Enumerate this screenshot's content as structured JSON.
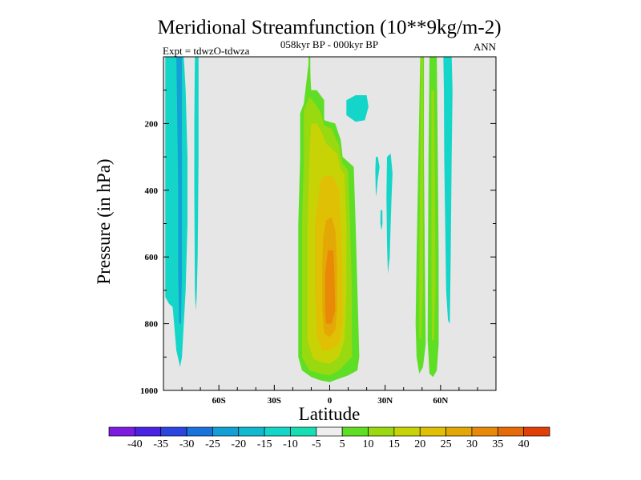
{
  "chart_data": {
    "type": "heatmap",
    "title": "Meridional Streamfunction (10**9kg/m-2)",
    "subtitle": "058kyr BP - 000kyr BP",
    "experiment_label": "Expt = tdwzO-tdwza",
    "season_label": "ANN",
    "xlabel": "Latitude",
    "ylabel": "Pressure (in hPa)",
    "x_range": [
      -90,
      90
    ],
    "y_range": [
      0,
      1000
    ],
    "y_inverted": true,
    "x_ticks": [
      {
        "value": -60,
        "label": "60S"
      },
      {
        "value": -30,
        "label": "30S"
      },
      {
        "value": 0,
        "label": "0"
      },
      {
        "value": 30,
        "label": "30N"
      },
      {
        "value": 60,
        "label": "60N"
      }
    ],
    "y_ticks": [
      {
        "value": 200,
        "label": "200"
      },
      {
        "value": 400,
        "label": "400"
      },
      {
        "value": 600,
        "label": "600"
      },
      {
        "value": 800,
        "label": "800"
      },
      {
        "value": 1000,
        "label": "1000"
      }
    ],
    "background_color": "#e6e6e6",
    "colorbar": {
      "levels": [
        -40,
        -35,
        -30,
        -25,
        -20,
        -15,
        -10,
        -5,
        5,
        10,
        15,
        20,
        25,
        30,
        35,
        40
      ],
      "colors": [
        "#7d1be0",
        "#4a22e4",
        "#2a45e0",
        "#1a72dc",
        "#13a0d6",
        "#0fbad0",
        "#14d6c8",
        "#18deb4",
        "#eeeeee",
        "#5fde26",
        "#98d90f",
        "#c8d306",
        "#e0c004",
        "#e4a806",
        "#e88a08",
        "#e66a08",
        "#e23e08"
      ]
    },
    "contour_regions": [
      {
        "name": "south-polar-band",
        "color": "#14d6c8",
        "points": [
          [
            -89,
            0
          ],
          [
            -79,
            0
          ],
          [
            -78,
            100
          ],
          [
            -77,
            300
          ],
          [
            -77,
            500
          ],
          [
            -78,
            700
          ],
          [
            -79,
            800
          ],
          [
            -80,
            900
          ],
          [
            -81,
            930
          ],
          [
            -83,
            880
          ],
          [
            -85,
            750
          ],
          [
            -87,
            740
          ],
          [
            -89,
            720
          ]
        ]
      },
      {
        "name": "south-polar-band-inner",
        "color": "#13a0d6",
        "points": [
          [
            -83,
            0
          ],
          [
            -80,
            0
          ],
          [
            -80,
            200
          ],
          [
            -80,
            400
          ],
          [
            -80,
            650
          ],
          [
            -80.5,
            800
          ],
          [
            -81.5,
            800
          ],
          [
            -82,
            650
          ],
          [
            -82,
            400
          ],
          [
            -82.5,
            200
          ]
        ]
      },
      {
        "name": "south-narrow-band",
        "color": "#14d6c8",
        "points": [
          [
            -73,
            0
          ],
          [
            -71,
            0
          ],
          [
            -71,
            300
          ],
          [
            -71.5,
            600
          ],
          [
            -72,
            720
          ],
          [
            -72.5,
            760
          ],
          [
            -73,
            700
          ],
          [
            -73.3,
            400
          ],
          [
            -73.3,
            200
          ]
        ]
      },
      {
        "name": "tropical-cell-5",
        "color": "#5fde26",
        "points": [
          [
            -11,
            0
          ],
          [
            -10,
            100
          ],
          [
            -7,
            100
          ],
          [
            -3,
            130
          ],
          [
            -3,
            190
          ],
          [
            3,
            200
          ],
          [
            6,
            250
          ],
          [
            7,
            300
          ],
          [
            13,
            330
          ],
          [
            14,
            500
          ],
          [
            15,
            700
          ],
          [
            16,
            900
          ],
          [
            15,
            940
          ],
          [
            10,
            955
          ],
          [
            5,
            965
          ],
          [
            0,
            975
          ],
          [
            -5,
            970
          ],
          [
            -10,
            960
          ],
          [
            -15,
            940
          ],
          [
            -17,
            900
          ],
          [
            -17,
            700
          ],
          [
            -17,
            500
          ],
          [
            -16,
            300
          ],
          [
            -16,
            170
          ],
          [
            -14,
            140
          ]
        ]
      },
      {
        "name": "tropical-cell-10",
        "color": "#98d90f",
        "points": [
          [
            -11,
            120
          ],
          [
            -8,
            140
          ],
          [
            -5,
            165
          ],
          [
            -3,
            205
          ],
          [
            1,
            215
          ],
          [
            5,
            265
          ],
          [
            7,
            320
          ],
          [
            10,
            340
          ],
          [
            11,
            500
          ],
          [
            12,
            700
          ],
          [
            12,
            900
          ],
          [
            5,
            940
          ],
          [
            0,
            955
          ],
          [
            -5,
            950
          ],
          [
            -11,
            940
          ],
          [
            -15,
            900
          ],
          [
            -15,
            700
          ],
          [
            -15,
            500
          ],
          [
            -14,
            300
          ],
          [
            -14,
            160
          ]
        ]
      },
      {
        "name": "tropical-cell-15",
        "color": "#c8d306",
        "points": [
          [
            -10,
            200
          ],
          [
            -7,
            200
          ],
          [
            -4,
            230
          ],
          [
            -2,
            260
          ],
          [
            4,
            290
          ],
          [
            6,
            340
          ],
          [
            8,
            350
          ],
          [
            9,
            500
          ],
          [
            9,
            700
          ],
          [
            8,
            850
          ],
          [
            5,
            900
          ],
          [
            0,
            920
          ],
          [
            -5,
            915
          ],
          [
            -9,
            905
          ],
          [
            -12,
            850
          ],
          [
            -12,
            700
          ],
          [
            -12,
            500
          ],
          [
            -11,
            300
          ]
        ]
      },
      {
        "name": "tropical-cell-20",
        "color": "#e0c004",
        "points": [
          [
            -5,
            370
          ],
          [
            -2,
            355
          ],
          [
            2,
            360
          ],
          [
            5,
            400
          ],
          [
            6,
            500
          ],
          [
            7,
            650
          ],
          [
            7,
            800
          ],
          [
            5,
            860
          ],
          [
            0,
            880
          ],
          [
            -4,
            880
          ],
          [
            -7,
            840
          ],
          [
            -8,
            700
          ],
          [
            -8,
            500
          ]
        ]
      },
      {
        "name": "tropical-cell-25",
        "color": "#e4a806",
        "points": [
          [
            -2,
            490
          ],
          [
            1,
            480
          ],
          [
            3,
            520
          ],
          [
            4,
            620
          ],
          [
            4,
            760
          ],
          [
            3,
            820
          ],
          [
            0,
            840
          ],
          [
            -3,
            830
          ],
          [
            -4,
            760
          ],
          [
            -4,
            620
          ],
          [
            -3.5,
            540
          ]
        ]
      },
      {
        "name": "tropical-cell-30",
        "color": "#e88a08",
        "points": [
          [
            -1,
            580
          ],
          [
            2,
            580
          ],
          [
            2.5,
            650
          ],
          [
            3,
            760
          ],
          [
            1,
            800
          ],
          [
            -2,
            800
          ],
          [
            -2.5,
            760
          ],
          [
            -2.5,
            650
          ]
        ]
      },
      {
        "name": "tropical-updraft-strand",
        "color": "#5fde26",
        "points": [
          [
            -11.5,
            0
          ],
          [
            -10.5,
            0
          ],
          [
            -10.5,
            100
          ],
          [
            -11.5,
            100
          ]
        ]
      },
      {
        "name": "nh-subtropic-blob-1",
        "color": "#14d6c8",
        "points": [
          [
            9,
            130
          ],
          [
            14,
            115
          ],
          [
            20,
            115
          ],
          [
            21,
            150
          ],
          [
            19,
            190
          ],
          [
            14,
            195
          ],
          [
            9,
            175
          ]
        ]
      },
      {
        "name": "nh-subtropic-blob-2",
        "color": "#14d6c8",
        "points": [
          [
            25,
            300
          ],
          [
            26,
            300
          ],
          [
            27,
            330
          ],
          [
            26,
            370
          ],
          [
            25.5,
            400
          ],
          [
            25,
            420
          ],
          [
            24.8,
            380
          ],
          [
            24.7,
            340
          ]
        ]
      },
      {
        "name": "nh-subtropic-blob-3",
        "color": "#14d6c8",
        "points": [
          [
            31,
            300
          ],
          [
            33,
            290
          ],
          [
            34,
            350
          ],
          [
            33.5,
            420
          ],
          [
            33,
            500
          ],
          [
            32.5,
            600
          ],
          [
            31.5,
            650
          ],
          [
            31,
            560
          ],
          [
            30.7,
            420
          ]
        ]
      },
      {
        "name": "nh-subtropic-blob-4",
        "color": "#14d6c8",
        "points": [
          [
            27.5,
            460
          ],
          [
            28.5,
            460
          ],
          [
            28.6,
            500
          ],
          [
            28,
            520
          ],
          [
            27.4,
            500
          ]
        ]
      },
      {
        "name": "nh-midlat-band-5",
        "color": "#5fde26",
        "points": [
          [
            49,
            0
          ],
          [
            51,
            0
          ],
          [
            51,
            300
          ],
          [
            51.5,
            600
          ],
          [
            52,
            860
          ],
          [
            50.5,
            930
          ],
          [
            48.5,
            950
          ],
          [
            47,
            900
          ],
          [
            46.5,
            800
          ],
          [
            47,
            600
          ],
          [
            48,
            300
          ]
        ]
      },
      {
        "name": "nh-midlat-band-10",
        "color": "#98d90f",
        "points": [
          [
            49.5,
            0
          ],
          [
            50.5,
            0
          ],
          [
            50.5,
            400
          ],
          [
            50.5,
            700
          ],
          [
            49.5,
            850
          ],
          [
            48.5,
            840
          ],
          [
            48.5,
            600
          ],
          [
            49,
            300
          ]
        ]
      },
      {
        "name": "nh-highlat-band-5",
        "color": "#5fde26",
        "points": [
          [
            54,
            0
          ],
          [
            58,
            0
          ],
          [
            58.5,
            300
          ],
          [
            59,
            600
          ],
          [
            59,
            860
          ],
          [
            58,
            940
          ],
          [
            56,
            960
          ],
          [
            54,
            950
          ],
          [
            53,
            850
          ],
          [
            53.2,
            600
          ],
          [
            53.5,
            300
          ]
        ]
      },
      {
        "name": "nh-highlat-band-10",
        "color": "#98d90f",
        "points": [
          [
            55,
            100
          ],
          [
            56.5,
            100
          ],
          [
            57,
            400
          ],
          [
            57.2,
            700
          ],
          [
            56.5,
            850
          ],
          [
            55.3,
            850
          ],
          [
            55,
            600
          ],
          [
            55,
            300
          ]
        ]
      },
      {
        "name": "nh-polar-band",
        "color": "#14d6c8",
        "points": [
          [
            61.5,
            0
          ],
          [
            66,
            0
          ],
          [
            66.5,
            100
          ],
          [
            66,
            300
          ],
          [
            65.5,
            600
          ],
          [
            65,
            800
          ],
          [
            64,
            790
          ],
          [
            63,
            700
          ],
          [
            62.5,
            500
          ],
          [
            62,
            300
          ],
          [
            61.8,
            100
          ]
        ]
      }
    ]
  }
}
